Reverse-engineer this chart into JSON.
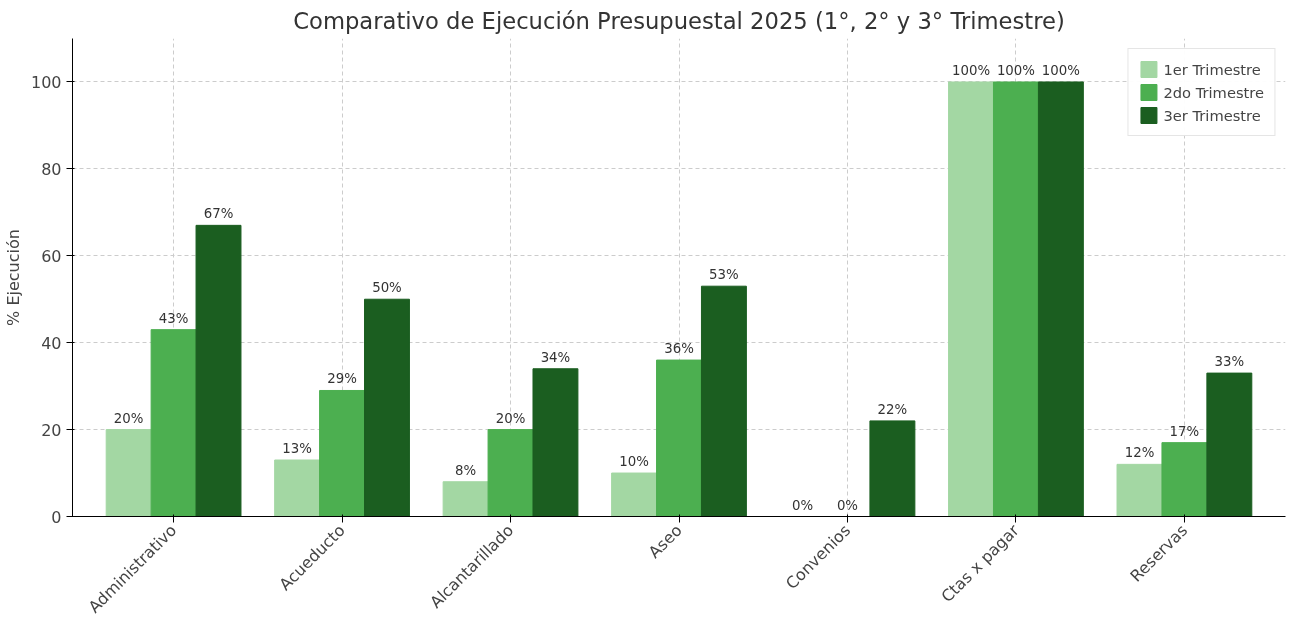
{
  "chart_data": {
    "type": "bar",
    "title": "Comparativo de Ejecución Presupuestal 2025 (1°, 2° y 3° Trimestre)",
    "ylabel": "% Ejecución",
    "categories": [
      "Administrativo",
      "Acueducto",
      "Alcantarillado",
      "Aseo",
      "Convenios",
      "Ctas x pagar",
      "Reservas"
    ],
    "series": [
      {
        "name": "1er Trimestre",
        "color": "#a3d7a3",
        "values": [
          20,
          13,
          8,
          10,
          0,
          100,
          12
        ],
        "value_labels": [
          "20%",
          "13%",
          "8%",
          "10%",
          "0%",
          "100%",
          "12%"
        ]
      },
      {
        "name": "2do Trimestre",
        "color": "#4caf50",
        "values": [
          43,
          29,
          20,
          36,
          0,
          100,
          17
        ],
        "value_labels": [
          "43%",
          "29%",
          "20%",
          "36%",
          "0%",
          "100%",
          "17%"
        ]
      },
      {
        "name": "3er Trimestre",
        "color": "#1b5e20",
        "values": [
          67,
          50,
          34,
          53,
          22,
          100,
          33
        ],
        "value_labels": [
          "67%",
          "50%",
          "34%",
          "53%",
          "22%",
          "100%",
          "33%"
        ]
      }
    ],
    "ylim": [
      0,
      110
    ],
    "yticks": [
      0,
      20,
      40,
      60,
      80,
      100
    ],
    "grid": true,
    "legend": "top right"
  }
}
